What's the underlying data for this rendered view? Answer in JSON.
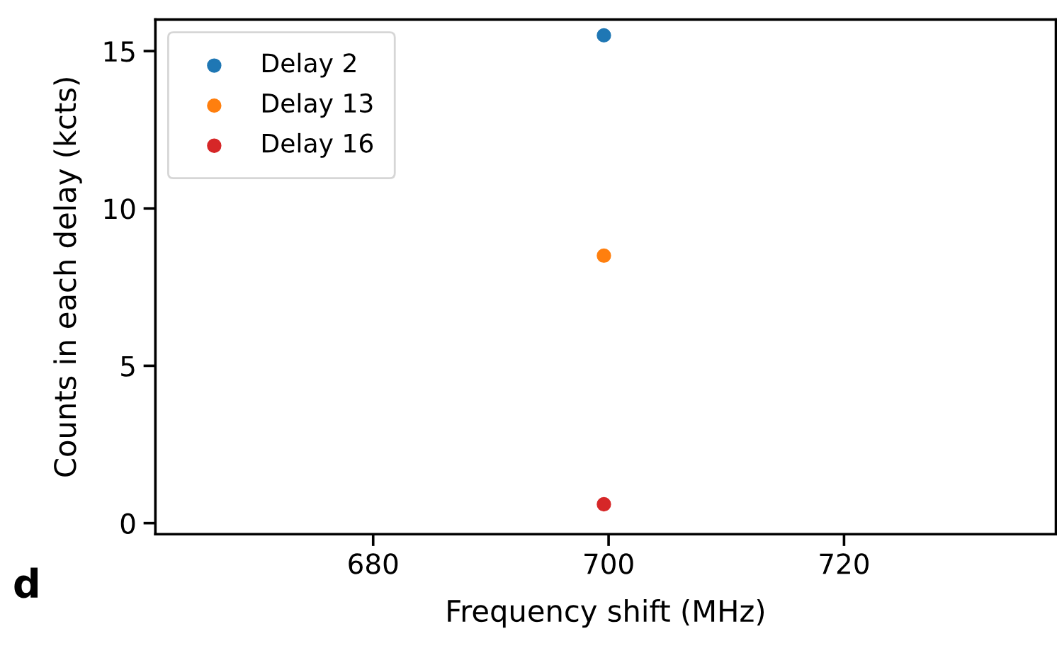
{
  "chart_data": {
    "type": "scatter",
    "xlabel": "Frequency shift (MHz)",
    "ylabel": "Counts in each delay (kcts)",
    "series": [
      {
        "name": "Delay 2",
        "color": "#1f77b4",
        "values": [
          15.5
        ]
      },
      {
        "name": "Delay 13",
        "color": "#ff7f0e",
        "values": [
          8.5
        ]
      },
      {
        "name": "Delay 16",
        "color": "#d62728",
        "values": [
          0.6
        ]
      }
    ],
    "x": [
      699.6
    ],
    "xlim": [
      661.5,
      738
    ],
    "xticks": [
      680,
      700,
      720
    ],
    "ylim": [
      -0.35,
      16
    ],
    "yticks": [
      0,
      5,
      10,
      15
    ],
    "marker": "circle",
    "legend": "top left",
    "grid": false,
    "annotations": [
      "d"
    ]
  }
}
